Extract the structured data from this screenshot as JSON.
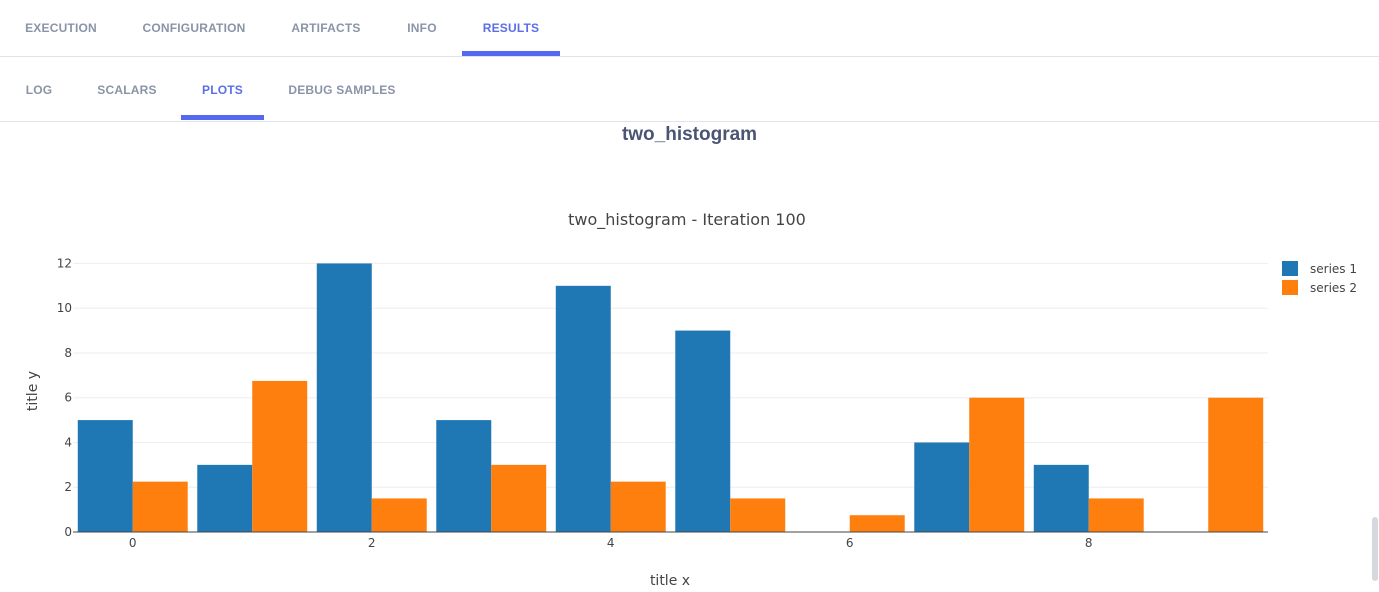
{
  "main_tabs": [
    {
      "label": "EXECUTION",
      "active": false
    },
    {
      "label": "CONFIGURATION",
      "active": false
    },
    {
      "label": "ARTIFACTS",
      "active": false
    },
    {
      "label": "INFO",
      "active": false
    },
    {
      "label": "RESULTS",
      "active": true
    }
  ],
  "sub_tabs": [
    {
      "label": "LOG",
      "active": false
    },
    {
      "label": "SCALARS",
      "active": false
    },
    {
      "label": "PLOTS",
      "active": true
    },
    {
      "label": "DEBUG SAMPLES",
      "active": false
    }
  ],
  "plot_heading": "two_histogram",
  "colors": {
    "accent": "#5469f0",
    "inactive_tab": "#8b93a8",
    "series_1": "#1f77b4",
    "series_2": "#ff7f0e"
  },
  "chart_data": {
    "type": "bar",
    "title": "two_histogram - Iteration 100",
    "xlabel": "title x",
    "ylabel": "title y",
    "x": [
      0,
      1,
      2,
      3,
      4,
      5,
      6,
      7,
      8,
      9
    ],
    "series": [
      {
        "name": "series 1",
        "color": "#1f77b4",
        "values": [
          5,
          3,
          12,
          5,
          11,
          9,
          0,
          4,
          3,
          0
        ]
      },
      {
        "name": "series 2",
        "color": "#ff7f0e",
        "values": [
          2.25,
          6.75,
          1.5,
          3,
          2.25,
          1.5,
          0.75,
          6,
          1.5,
          6
        ]
      }
    ],
    "xticks": [
      0,
      2,
      4,
      6,
      8
    ],
    "yticks": [
      0,
      2,
      4,
      6,
      8,
      10,
      12
    ],
    "ylim": [
      0,
      12.6
    ],
    "xlim": [
      -0.5,
      9.5
    ],
    "grid": true,
    "legend_position": "top-right"
  }
}
